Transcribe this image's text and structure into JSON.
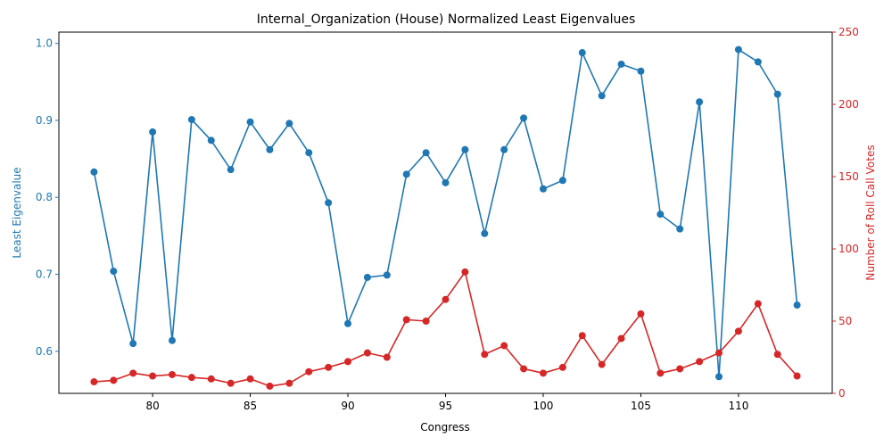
{
  "chart_data": {
    "type": "line",
    "title": "Internal_Organization (House) Normalized Least Eigenvalues",
    "xlabel": "Congress",
    "ylabel_left": "Least Eigenvalue",
    "ylabel_right": "Number of Roll Call Votes",
    "x": [
      77,
      78,
      79,
      80,
      81,
      82,
      83,
      84,
      85,
      86,
      87,
      88,
      89,
      90,
      91,
      92,
      93,
      94,
      95,
      96,
      97,
      98,
      99,
      100,
      101,
      102,
      103,
      104,
      105,
      106,
      107,
      108,
      109,
      110,
      111,
      112,
      113
    ],
    "series": [
      {
        "axis": "left",
        "color": "#1f77b4",
        "values": [
          0.833,
          0.704,
          0.61,
          0.885,
          0.614,
          0.901,
          0.874,
          0.836,
          0.898,
          0.862,
          0.896,
          0.858,
          0.793,
          0.636,
          0.696,
          0.699,
          0.83,
          0.858,
          0.819,
          0.862,
          0.753,
          0.862,
          0.903,
          0.811,
          0.822,
          0.988,
          0.932,
          0.973,
          0.964,
          0.778,
          0.759,
          0.924,
          0.567,
          0.992,
          0.976,
          0.934,
          0.66
        ]
      },
      {
        "axis": "right",
        "color": "#d62728",
        "values": [
          8,
          9,
          14,
          12,
          13,
          11,
          10,
          7,
          10,
          5,
          7,
          15,
          18,
          22,
          28,
          25,
          51,
          50,
          65,
          84,
          27,
          33,
          17,
          14,
          18,
          40,
          20,
          38,
          55,
          14,
          17,
          22,
          28,
          43,
          62,
          27,
          12
        ]
      }
    ],
    "xlim": [
      75.2,
      114.8
    ],
    "ylim_left": [
      0.5453,
      1.0147
    ],
    "ylim_right": [
      0,
      250
    ],
    "xticks": [
      80,
      85,
      90,
      95,
      100,
      105,
      110
    ],
    "yticks_left": [
      0.6,
      0.7,
      0.8,
      0.9,
      1.0
    ],
    "yticks_right": [
      0,
      50,
      100,
      150,
      200,
      250
    ],
    "grid": false,
    "left_axis_color": "#1f77b4",
    "right_axis_color": "#d62728"
  }
}
